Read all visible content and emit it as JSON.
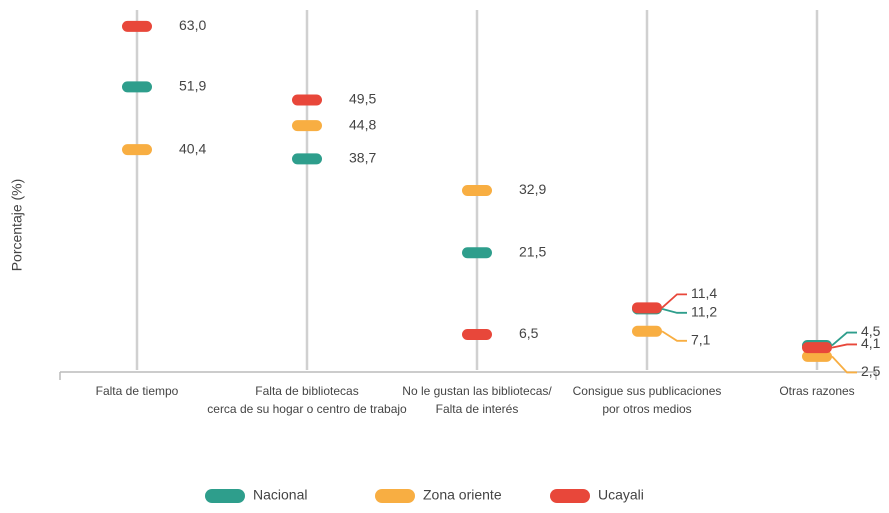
{
  "chart_data": {
    "type": "dot",
    "y_label": "Porcentaje (%)",
    "categories": [
      [
        "Falta de tiempo"
      ],
      [
        "Falta de bibliotecas",
        "cerca de su hogar o centro de trabajo"
      ],
      [
        "No le gustan las bibliotecas/",
        "Falta de interés"
      ],
      [
        "Consigue sus publicaciones",
        "por otros medios"
      ],
      [
        "Otras razones"
      ]
    ],
    "series": [
      {
        "name": "Nacional",
        "color": "#2e9e8c",
        "values": [
          51.9,
          38.7,
          21.5,
          11.2,
          4.5
        ],
        "value_labels": [
          "51,9",
          "38,7",
          "21,5",
          "11,2",
          "4,5"
        ]
      },
      {
        "name": "Zona oriente",
        "color": "#f8ae42",
        "values": [
          40.4,
          44.8,
          32.9,
          7.1,
          2.5
        ],
        "value_labels": [
          "40,4",
          "44,8",
          "32,9",
          "7,1",
          "2,5"
        ]
      },
      {
        "name": "Ucayali",
        "color": "#e8473a",
        "values": [
          63.0,
          49.5,
          6.5,
          11.4,
          4.1
        ],
        "value_labels": [
          "63,0",
          "49,5",
          "6,5",
          "11,4",
          "4,1"
        ]
      }
    ],
    "ylim": [
      0,
      66
    ],
    "legend": "bottom"
  }
}
